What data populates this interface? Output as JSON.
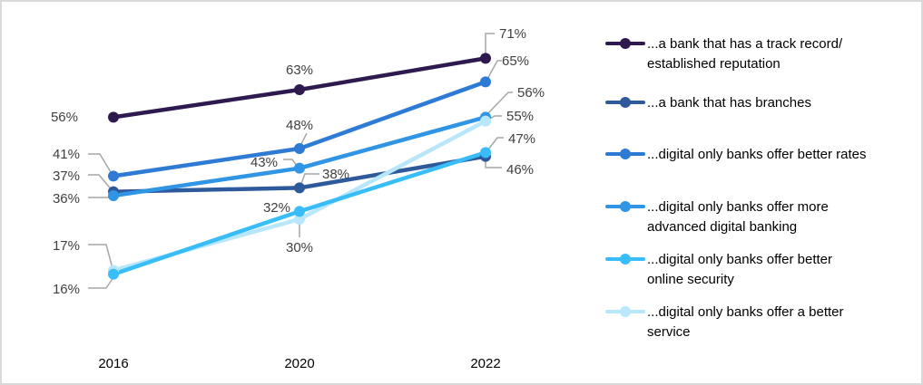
{
  "chart_data": {
    "type": "line",
    "title": "",
    "xlabel": "",
    "ylabel": "",
    "x": [
      "2016",
      "2020",
      "2022"
    ],
    "ylim": [
      0,
      75
    ],
    "grid": false,
    "legend_position": "right",
    "series": [
      {
        "name": "...a bank that has a track record/ established reputation",
        "color": "#2E1A4F",
        "values": [
          56,
          63,
          71
        ],
        "labels": [
          "56%",
          "63%",
          "71%"
        ]
      },
      {
        "name": "...a bank that has branches",
        "color": "#2E5A9C",
        "values": [
          37,
          38,
          46
        ],
        "labels": [
          "37%",
          "38%",
          "46%"
        ]
      },
      {
        "name": "...digital only banks offer better rates",
        "color": "#2E7BD6",
        "values": [
          41,
          48,
          65
        ],
        "labels": [
          "41%",
          "48%",
          "65%"
        ]
      },
      {
        "name": "...digital only banks offer more advanced digital banking",
        "color": "#2F95E4",
        "values": [
          36,
          43,
          56
        ],
        "labels": [
          "36%",
          "43%",
          "56%"
        ]
      },
      {
        "name": "...digital only banks offer better online security",
        "color": "#38BDF8",
        "values": [
          16,
          32,
          47
        ],
        "labels": [
          "16%",
          "32%",
          "47%"
        ]
      },
      {
        "name": "...digital only banks offer a better service",
        "color": "#B8E6FB",
        "values": [
          17,
          30,
          55
        ],
        "labels": [
          "17%",
          "30%",
          "55%"
        ]
      }
    ]
  },
  "legend": {
    "items": [
      {
        "label_line1": "...a bank that has a track record/",
        "label_line2": "established reputation"
      },
      {
        "label_line1": "...a bank that has branches",
        "label_line2": ""
      },
      {
        "label_line1": "...digital only banks offer better rates",
        "label_line2": ""
      },
      {
        "label_line1": "...digital only banks offer more",
        "label_line2": "advanced digital banking"
      },
      {
        "label_line1": "...digital only banks offer better",
        "label_line2": "online security"
      },
      {
        "label_line1": "...digital only banks offer a better",
        "label_line2": "service"
      }
    ]
  }
}
